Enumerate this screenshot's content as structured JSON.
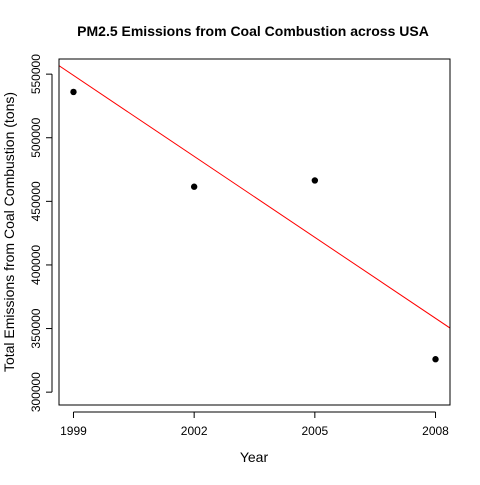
{
  "chart_data": {
    "type": "scatter",
    "title": "PM2.5 Emissions from Coal Combustion across USA",
    "xlabel": "Year",
    "ylabel": "Total Emissions from Coal Combustion (tons)",
    "x_ticks": [
      1999,
      2002,
      2005,
      2008
    ],
    "y_ticks": [
      300000,
      350000,
      400000,
      450000,
      500000,
      550000
    ],
    "xlim": [
      1998.64,
      2008.36
    ],
    "ylim": [
      289900,
      561900
    ],
    "series": [
      {
        "points": [
          {
            "x": 1999,
            "y": 536000
          },
          {
            "x": 2002,
            "y": 461500
          },
          {
            "x": 2005,
            "y": 466400
          },
          {
            "x": 2008,
            "y": 325900
          }
        ],
        "color": "#000000"
      }
    ],
    "regression_line": {
      "color": "#ff0000",
      "slope": -21220,
      "intercept": 42967800
    },
    "grid": false
  }
}
